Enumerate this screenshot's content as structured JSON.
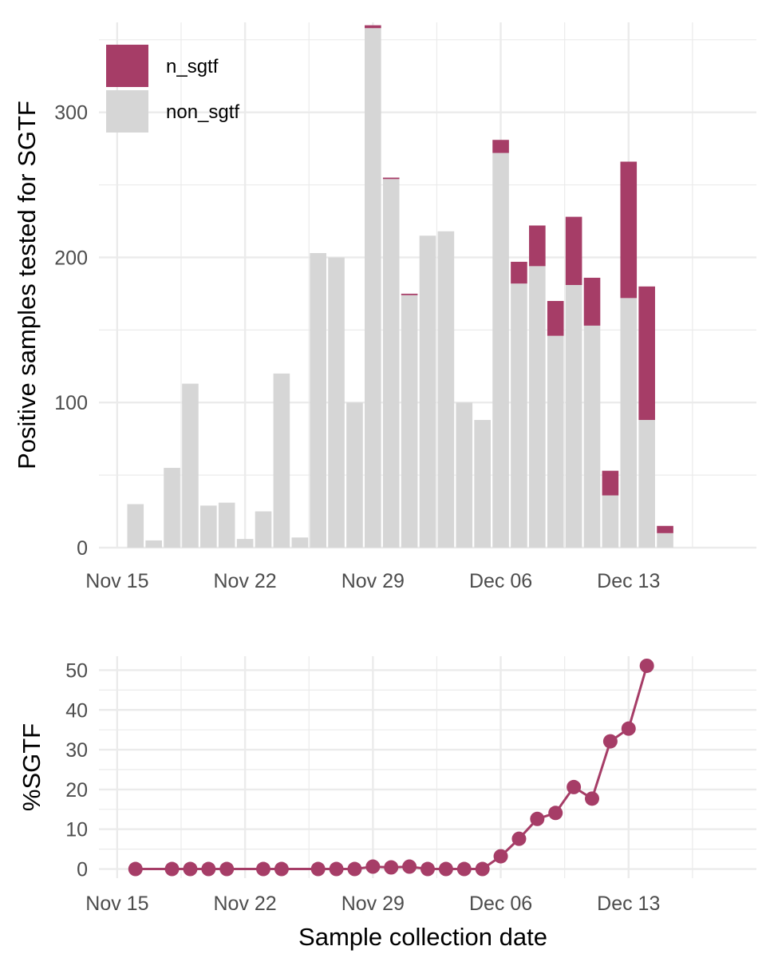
{
  "colors": {
    "sgtf": "#a63d67",
    "non_sgtf": "#d6d6d6",
    "grid": "#ebebeb",
    "tick_text": "#4d4d4d"
  },
  "chart_data": [
    {
      "type": "bar",
      "stacked": true,
      "ylabel": "Positive samples tested for SGTF",
      "xlabel": "",
      "x_ticks": [
        "Nov 15",
        "Nov 22",
        "Nov 29",
        "Dec 06",
        "Dec 13"
      ],
      "y_ticks": [
        0,
        100,
        200,
        300
      ],
      "xlim": [
        "2020-11-14",
        "2020-12-20"
      ],
      "ylim": [
        0,
        362
      ],
      "grid": true,
      "legend": {
        "placement": "top-left",
        "entries": [
          "n_sgtf",
          "non_sgtf"
        ]
      },
      "categories": [
        "2020-11-16",
        "2020-11-17",
        "2020-11-18",
        "2020-11-19",
        "2020-11-20",
        "2020-11-21",
        "2020-11-22",
        "2020-11-23",
        "2020-11-24",
        "2020-11-25",
        "2020-11-26",
        "2020-11-27",
        "2020-11-28",
        "2020-11-29",
        "2020-11-30",
        "2020-12-01",
        "2020-12-02",
        "2020-12-03",
        "2020-12-04",
        "2020-12-05",
        "2020-12-06",
        "2020-12-07",
        "2020-12-08",
        "2020-12-09",
        "2020-12-10",
        "2020-12-11",
        "2020-12-12",
        "2020-12-13",
        "2020-12-14",
        "2020-12-15"
      ],
      "series": [
        {
          "name": "non_sgtf",
          "values": [
            30,
            5,
            55,
            113,
            29,
            31,
            6,
            25,
            120,
            7,
            203,
            200,
            100,
            358,
            254,
            174,
            215,
            218,
            100,
            88,
            272,
            182,
            194,
            146,
            181,
            153,
            36,
            172,
            88,
            10
          ]
        },
        {
          "name": "n_sgtf",
          "values": [
            0,
            0,
            0,
            0,
            0,
            0,
            0,
            0,
            0,
            0,
            0,
            0,
            0,
            2,
            1,
            1,
            0,
            0,
            0,
            0,
            9,
            15,
            28,
            24,
            47,
            33,
            17,
            94,
            92,
            5
          ]
        }
      ]
    },
    {
      "type": "line",
      "ylabel": "%SGTF",
      "xlabel": "Sample collection date",
      "x_ticks": [
        "Nov 15",
        "Nov 22",
        "Nov 29",
        "Dec 06",
        "Dec 13"
      ],
      "y_ticks": [
        0,
        10,
        20,
        30,
        40,
        50
      ],
      "xlim": [
        "2020-11-14",
        "2020-12-20"
      ],
      "ylim": [
        -2.3,
        53.5
      ],
      "grid": true,
      "markers": true,
      "x": [
        "2020-11-16",
        "2020-11-18",
        "2020-11-19",
        "2020-11-20",
        "2020-11-21",
        "2020-11-23",
        "2020-11-24",
        "2020-11-26",
        "2020-11-27",
        "2020-11-28",
        "2020-11-29",
        "2020-11-30",
        "2020-12-01",
        "2020-12-02",
        "2020-12-03",
        "2020-12-04",
        "2020-12-05",
        "2020-12-06",
        "2020-12-07",
        "2020-12-08",
        "2020-12-09",
        "2020-12-10",
        "2020-12-11",
        "2020-12-12",
        "2020-12-13",
        "2020-12-14"
      ],
      "values": [
        0,
        0,
        0,
        0,
        0,
        0,
        0,
        0,
        0,
        0,
        0.6,
        0.4,
        0.6,
        0,
        0,
        0,
        0,
        3.2,
        7.6,
        12.6,
        14.1,
        20.6,
        17.7,
        32.1,
        35.3,
        51.1
      ]
    }
  ]
}
